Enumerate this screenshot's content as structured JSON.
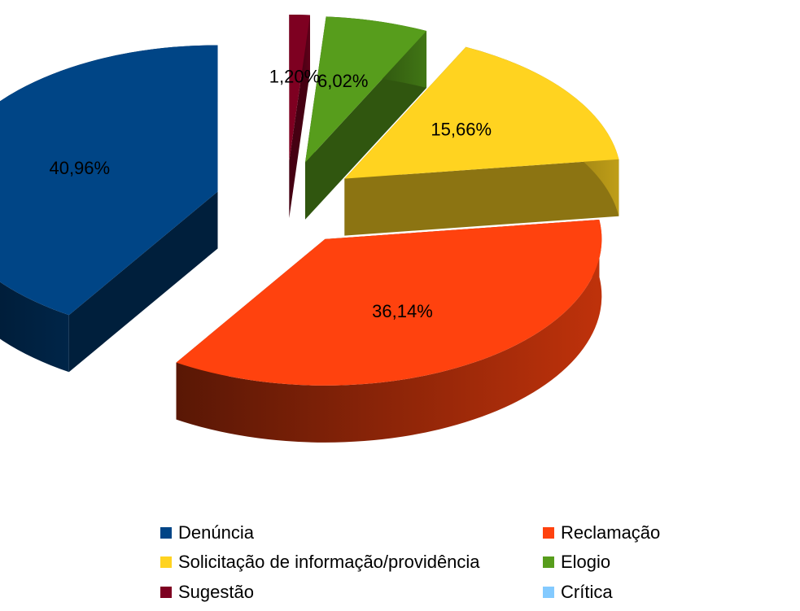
{
  "chart_data": {
    "type": "pie",
    "style": "3d-exploded",
    "title": "",
    "slices": [
      {
        "name": "Denúncia",
        "value": 40.96,
        "label": "40,96%",
        "color": "#004586"
      },
      {
        "name": "Reclamação",
        "value": 36.14,
        "label": "36,14%",
        "color": "#ff420e"
      },
      {
        "name": "Solicitação de informação/providência",
        "value": 15.66,
        "label": "15,66%",
        "color": "#ffd320"
      },
      {
        "name": "Elogio",
        "value": 6.02,
        "label": "6,02%",
        "color": "#579d1c"
      },
      {
        "name": "Sugestão",
        "value": 1.2,
        "label": "1,20%",
        "color": "#7e0021"
      },
      {
        "name": "Crítica",
        "value": 0,
        "label": "",
        "color": "#83caff"
      }
    ],
    "legend_position": "bottom"
  }
}
